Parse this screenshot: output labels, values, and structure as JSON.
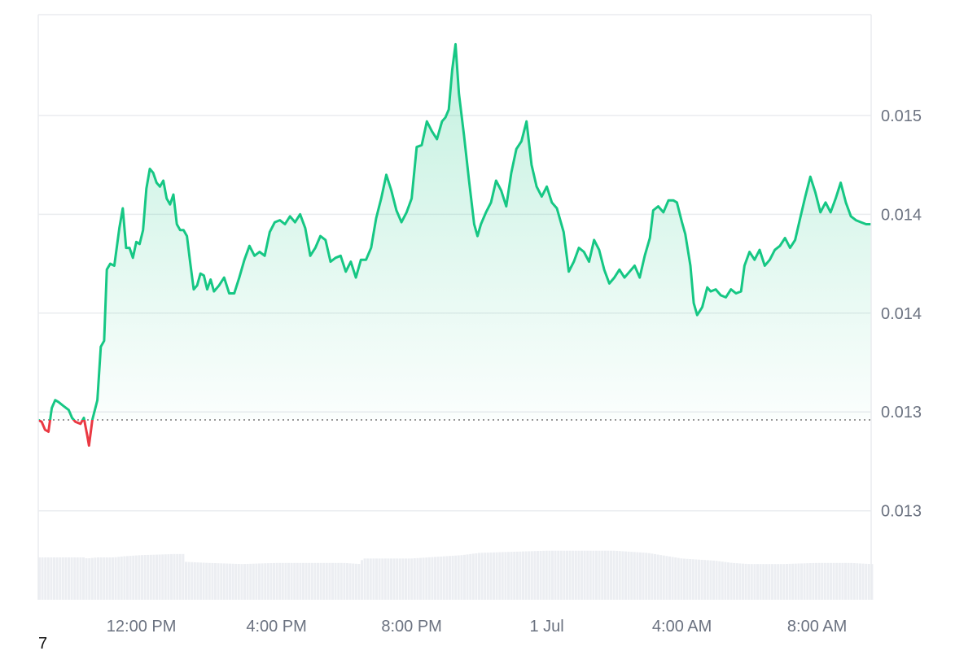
{
  "corner_label": "7",
  "colors": {
    "up": "#16c784",
    "down": "#ea3943",
    "grid": "#eaecef",
    "volume": "#eceef2",
    "baseline": "#777777"
  },
  "chart_data": {
    "type": "line",
    "title": "",
    "xlabel": "",
    "ylabel": "",
    "y_ticks": [
      {
        "value": 0.015,
        "label": "0.015"
      },
      {
        "value": 0.0145,
        "label": "0.014"
      },
      {
        "value": 0.014,
        "label": "0.014"
      },
      {
        "value": 0.0135,
        "label": "0.013"
      },
      {
        "value": 0.013,
        "label": "0.013"
      }
    ],
    "ylim": [
      0.01255,
      0.01551
    ],
    "x_ticks": [
      {
        "t": 2.0,
        "label": "12:00 PM"
      },
      {
        "t": 6.0,
        "label": "4:00 PM"
      },
      {
        "t": 10.0,
        "label": "8:00 PM"
      },
      {
        "t": 14.0,
        "label": "1 Jul"
      },
      {
        "t": 18.0,
        "label": "4:00 AM"
      },
      {
        "t": 22.0,
        "label": "8:00 AM"
      }
    ],
    "xlim": [
      -1.05,
      23.6
    ],
    "baseline": 0.01346,
    "grid": true,
    "legend": "none",
    "series": [
      {
        "points": [
          [
            -1.05,
            0.01346
          ],
          [
            -0.95,
            0.01345
          ],
          [
            -0.85,
            0.01341
          ],
          [
            -0.75,
            0.0134
          ],
          [
            -0.65,
            0.01352
          ],
          [
            -0.55,
            0.01356
          ],
          [
            -0.45,
            0.01355
          ],
          [
            -0.3,
            0.01353
          ],
          [
            -0.15,
            0.01351
          ],
          [
            -0.05,
            0.01347
          ],
          [
            0.05,
            0.01345
          ],
          [
            0.2,
            0.01344
          ],
          [
            0.3,
            0.01347
          ],
          [
            0.4,
            0.01338
          ],
          [
            0.45,
            0.01333
          ],
          [
            0.55,
            0.01346
          ],
          [
            0.7,
            0.01356
          ],
          [
            0.8,
            0.01383
          ],
          [
            0.9,
            0.01386
          ],
          [
            0.98,
            0.01422
          ],
          [
            1.08,
            0.01425
          ],
          [
            1.2,
            0.01424
          ],
          [
            1.35,
            0.01443
          ],
          [
            1.45,
            0.01453
          ],
          [
            1.55,
            0.01433
          ],
          [
            1.65,
            0.01433
          ],
          [
            1.75,
            0.01428
          ],
          [
            1.85,
            0.01436
          ],
          [
            1.95,
            0.01435
          ],
          [
            2.05,
            0.01442
          ],
          [
            2.15,
            0.01463
          ],
          [
            2.25,
            0.01473
          ],
          [
            2.35,
            0.01471
          ],
          [
            2.45,
            0.01466
          ],
          [
            2.55,
            0.01464
          ],
          [
            2.65,
            0.01467
          ],
          [
            2.75,
            0.01458
          ],
          [
            2.85,
            0.01455
          ],
          [
            2.95,
            0.0146
          ],
          [
            3.05,
            0.01445
          ],
          [
            3.15,
            0.01442
          ],
          [
            3.25,
            0.01442
          ],
          [
            3.35,
            0.01439
          ],
          [
            3.45,
            0.01425
          ],
          [
            3.55,
            0.01412
          ],
          [
            3.65,
            0.01414
          ],
          [
            3.75,
            0.0142
          ],
          [
            3.85,
            0.01419
          ],
          [
            3.95,
            0.01412
          ],
          [
            4.05,
            0.01417
          ],
          [
            4.15,
            0.01411
          ],
          [
            4.3,
            0.01414
          ],
          [
            4.45,
            0.01418
          ],
          [
            4.6,
            0.0141
          ],
          [
            4.75,
            0.0141
          ],
          [
            4.9,
            0.01418
          ],
          [
            5.05,
            0.01427
          ],
          [
            5.2,
            0.01434
          ],
          [
            5.35,
            0.01429
          ],
          [
            5.5,
            0.01431
          ],
          [
            5.65,
            0.01429
          ],
          [
            5.8,
            0.01441
          ],
          [
            5.95,
            0.01446
          ],
          [
            6.1,
            0.01447
          ],
          [
            6.25,
            0.01445
          ],
          [
            6.4,
            0.01449
          ],
          [
            6.55,
            0.01446
          ],
          [
            6.7,
            0.0145
          ],
          [
            6.85,
            0.01443
          ],
          [
            7.0,
            0.01429
          ],
          [
            7.15,
            0.01433
          ],
          [
            7.3,
            0.01439
          ],
          [
            7.45,
            0.01437
          ],
          [
            7.6,
            0.01426
          ],
          [
            7.75,
            0.01428
          ],
          [
            7.9,
            0.01429
          ],
          [
            8.05,
            0.01421
          ],
          [
            8.2,
            0.01426
          ],
          [
            8.35,
            0.01418
          ],
          [
            8.5,
            0.01427
          ],
          [
            8.65,
            0.01427
          ],
          [
            8.8,
            0.01433
          ],
          [
            8.95,
            0.01448
          ],
          [
            9.1,
            0.01458
          ],
          [
            9.25,
            0.0147
          ],
          [
            9.4,
            0.01462
          ],
          [
            9.55,
            0.01452
          ],
          [
            9.7,
            0.01446
          ],
          [
            9.85,
            0.01451
          ],
          [
            10.0,
            0.01458
          ],
          [
            10.15,
            0.01484
          ],
          [
            10.3,
            0.01485
          ],
          [
            10.45,
            0.01497
          ],
          [
            10.6,
            0.01492
          ],
          [
            10.75,
            0.01488
          ],
          [
            10.9,
            0.01497
          ],
          [
            11.0,
            0.01499
          ],
          [
            11.1,
            0.01503
          ],
          [
            11.2,
            0.01523
          ],
          [
            11.3,
            0.01536
          ],
          [
            11.4,
            0.01511
          ],
          [
            11.55,
            0.0149
          ],
          [
            11.7,
            0.01467
          ],
          [
            11.85,
            0.01445
          ],
          [
            11.95,
            0.01439
          ],
          [
            12.05,
            0.01445
          ],
          [
            12.2,
            0.01451
          ],
          [
            12.35,
            0.01456
          ],
          [
            12.5,
            0.01467
          ],
          [
            12.65,
            0.01462
          ],
          [
            12.8,
            0.01454
          ],
          [
            12.95,
            0.01471
          ],
          [
            13.1,
            0.01483
          ],
          [
            13.25,
            0.01487
          ],
          [
            13.4,
            0.01497
          ],
          [
            13.55,
            0.01475
          ],
          [
            13.7,
            0.01464
          ],
          [
            13.85,
            0.01459
          ],
          [
            14.0,
            0.01464
          ],
          [
            14.15,
            0.01456
          ],
          [
            14.3,
            0.01453
          ],
          [
            14.5,
            0.01441
          ],
          [
            14.65,
            0.01421
          ],
          [
            14.8,
            0.01426
          ],
          [
            14.95,
            0.01433
          ],
          [
            15.1,
            0.01431
          ],
          [
            15.25,
            0.01426
          ],
          [
            15.4,
            0.01437
          ],
          [
            15.55,
            0.01432
          ],
          [
            15.7,
            0.01422
          ],
          [
            15.85,
            0.01415
          ],
          [
            16.0,
            0.01418
          ],
          [
            16.15,
            0.01422
          ],
          [
            16.3,
            0.01418
          ],
          [
            16.45,
            0.01421
          ],
          [
            16.6,
            0.01424
          ],
          [
            16.75,
            0.01418
          ],
          [
            16.9,
            0.01429
          ],
          [
            17.05,
            0.01438
          ],
          [
            17.15,
            0.01452
          ],
          [
            17.3,
            0.01454
          ],
          [
            17.45,
            0.01451
          ],
          [
            17.6,
            0.01457
          ],
          [
            17.75,
            0.01457
          ],
          [
            17.85,
            0.01456
          ],
          [
            18.0,
            0.01446
          ],
          [
            18.1,
            0.0144
          ],
          [
            18.25,
            0.01424
          ],
          [
            18.35,
            0.01405
          ],
          [
            18.45,
            0.01399
          ],
          [
            18.6,
            0.01403
          ],
          [
            18.75,
            0.01413
          ],
          [
            18.85,
            0.01411
          ],
          [
            19.0,
            0.01412
          ],
          [
            19.15,
            0.01409
          ],
          [
            19.3,
            0.01408
          ],
          [
            19.45,
            0.01412
          ],
          [
            19.6,
            0.0141
          ],
          [
            19.75,
            0.01411
          ],
          [
            19.85,
            0.01424
          ],
          [
            20.0,
            0.01431
          ],
          [
            20.15,
            0.01427
          ],
          [
            20.3,
            0.01432
          ],
          [
            20.45,
            0.01424
          ],
          [
            20.6,
            0.01427
          ],
          [
            20.75,
            0.01432
          ],
          [
            20.9,
            0.01434
          ],
          [
            21.05,
            0.01438
          ],
          [
            21.2,
            0.01433
          ],
          [
            21.35,
            0.01437
          ],
          [
            21.5,
            0.01448
          ],
          [
            21.65,
            0.01459
          ],
          [
            21.8,
            0.01469
          ],
          [
            21.95,
            0.01461
          ],
          [
            22.1,
            0.01451
          ],
          [
            22.25,
            0.01456
          ],
          [
            22.4,
            0.01451
          ],
          [
            22.55,
            0.01458
          ],
          [
            22.7,
            0.01466
          ],
          [
            22.85,
            0.01456
          ],
          [
            23.0,
            0.01449
          ],
          [
            23.15,
            0.01447
          ],
          [
            23.3,
            0.01446
          ],
          [
            23.45,
            0.01445
          ],
          [
            23.6,
            0.01445
          ]
        ]
      }
    ],
    "volume_profile": [
      [
        -1.05,
        0.38
      ],
      [
        0.3,
        0.38
      ],
      [
        0.4,
        0.37
      ],
      [
        0.7,
        0.38
      ],
      [
        1.2,
        0.38
      ],
      [
        1.5,
        0.39
      ],
      [
        2.0,
        0.4
      ],
      [
        3.0,
        0.41
      ],
      [
        3.25,
        0.41
      ],
      [
        3.3,
        0.34
      ],
      [
        4.0,
        0.33
      ],
      [
        5.0,
        0.32
      ],
      [
        6.0,
        0.33
      ],
      [
        7.0,
        0.33
      ],
      [
        8.0,
        0.33
      ],
      [
        8.5,
        0.32
      ],
      [
        8.55,
        0.37
      ],
      [
        9.5,
        0.37
      ],
      [
        10.0,
        0.37
      ],
      [
        11.0,
        0.39
      ],
      [
        11.5,
        0.4
      ],
      [
        12.0,
        0.42
      ],
      [
        13.0,
        0.43
      ],
      [
        14.0,
        0.44
      ],
      [
        16.0,
        0.44
      ],
      [
        17.0,
        0.42
      ],
      [
        18.0,
        0.37
      ],
      [
        18.5,
        0.36
      ],
      [
        19.0,
        0.35
      ],
      [
        19.5,
        0.33
      ],
      [
        20.0,
        0.32
      ],
      [
        21.0,
        0.32
      ],
      [
        22.0,
        0.33
      ],
      [
        23.0,
        0.33
      ],
      [
        23.6,
        0.32
      ]
    ]
  }
}
